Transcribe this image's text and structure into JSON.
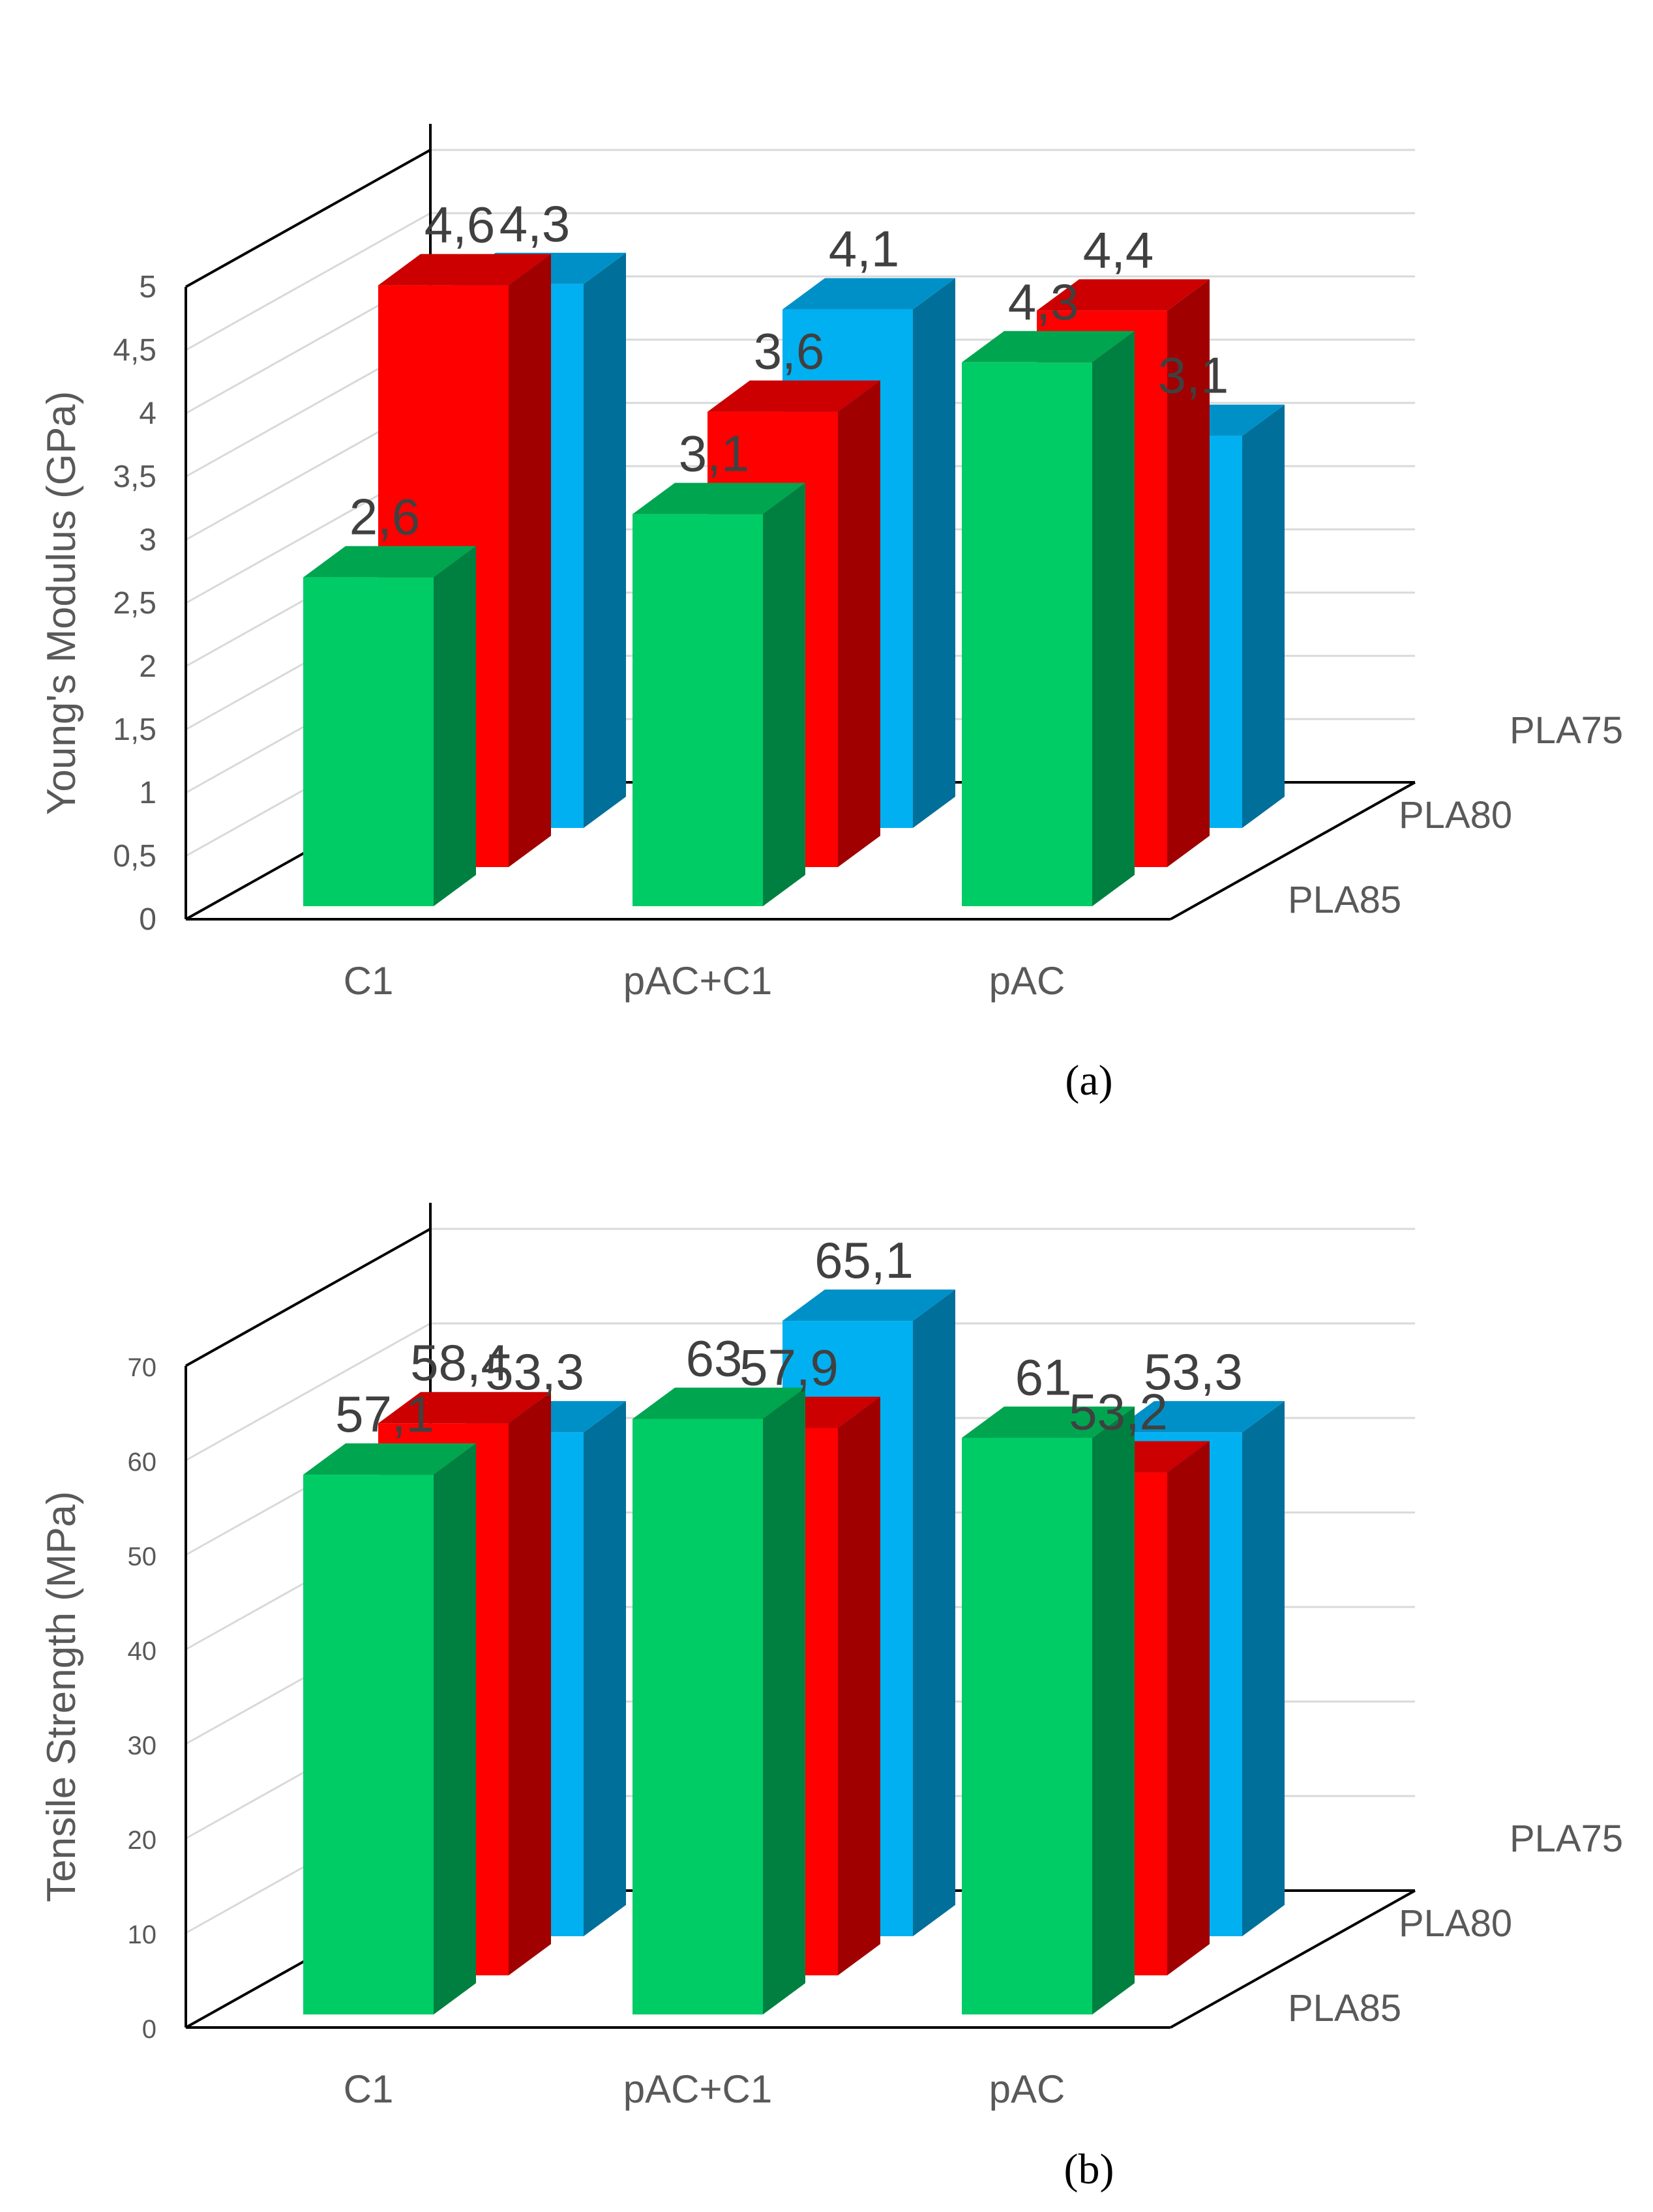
{
  "chart_data": [
    {
      "type": "bar",
      "projection": "3d-clustered-depth",
      "panel": "(a)",
      "ylabel": "Young's Modulus (GPa)",
      "categories": [
        "C1",
        "pAC+C1",
        "pAC"
      ],
      "ylim": [
        0,
        5
      ],
      "yticks": [
        0,
        0.5,
        1,
        1.5,
        2,
        2.5,
        3,
        3.5,
        4,
        4.5,
        5
      ],
      "ytick_labels": [
        "0",
        "0,5",
        "1",
        "1,5",
        "2",
        "2,5",
        "3",
        "3,5",
        "4",
        "4,5",
        "5"
      ],
      "series": [
        {
          "name": "PLA85",
          "values": [
            2.6,
            3.1,
            4.3
          ],
          "labels": [
            "2,6",
            "3,1",
            "4,3"
          ]
        },
        {
          "name": "PLA80",
          "values": [
            4.6,
            3.6,
            4.4
          ],
          "labels": [
            "4,6",
            "3,6",
            "4,4"
          ]
        },
        {
          "name": "PLA75",
          "values": [
            4.3,
            4.1,
            3.1
          ],
          "labels": [
            "4,3",
            "4,1",
            "3,1"
          ]
        }
      ]
    },
    {
      "type": "bar",
      "projection": "3d-clustered-depth",
      "panel": "(b)",
      "ylabel": "Tensile Strength (MPa)",
      "categories": [
        "C1",
        "pAC+C1",
        "pAC"
      ],
      "ylim": [
        0,
        70
      ],
      "yticks": [
        0,
        10,
        20,
        30,
        40,
        50,
        60,
        70
      ],
      "ytick_labels": [
        "0",
        "10",
        "20",
        "30",
        "40",
        "50",
        "60",
        "70"
      ],
      "series": [
        {
          "name": "PLA85",
          "values": [
            57.1,
            63,
            61
          ],
          "labels": [
            "57,1",
            "63",
            "61"
          ]
        },
        {
          "name": "PLA80",
          "values": [
            58.4,
            57.9,
            53.2
          ],
          "labels": [
            "58,4",
            "57,9",
            "53,2"
          ]
        },
        {
          "name": "PLA75",
          "values": [
            53.3,
            65.1,
            53.3
          ],
          "labels": [
            "53,3",
            "65,1",
            "53,3"
          ]
        }
      ]
    }
  ],
  "colors": {
    "PLA85": {
      "front": "#00cc66",
      "side": "#008040",
      "top": "#00a550"
    },
    "PLA80": {
      "front": "#ff0000",
      "side": "#a00000",
      "top": "#cc0000"
    },
    "PLA75": {
      "front": "#00b0f0",
      "side": "#006f99",
      "top": "#0090c8"
    },
    "grid": "#d9d9d9",
    "axis": "#000000",
    "text": "#595959",
    "data_label": "#404040"
  },
  "captions": {
    "a": "(a)",
    "b": "(b)"
  }
}
